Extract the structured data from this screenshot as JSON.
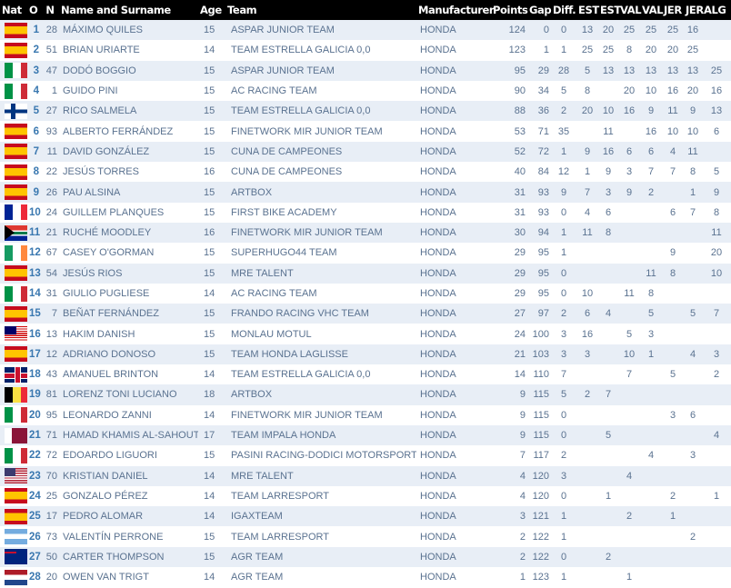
{
  "headers": {
    "nat": "Nat",
    "pos": "O",
    "num": "N",
    "name": "Name and Surname",
    "age": "Age",
    "team": "Team",
    "manufacturer": "Manufacturer",
    "points": "Points",
    "gap": "Gap",
    "diff": "Diff.",
    "races": [
      "EST",
      "EST",
      "VAL",
      "VAL",
      "JER",
      "JER",
      "ALG"
    ]
  },
  "colors": {
    "header_bg": "#000000",
    "row_alt": "#e8eef6",
    "text": "#5a7290",
    "position": "#3a78b0"
  },
  "rows": [
    {
      "flag": "es",
      "pos": "1",
      "num": "28",
      "name": "MÁXIMO QUILES",
      "age": "15",
      "team": "ASPAR JUNIOR TEAM",
      "manufacturer": "HONDA",
      "points": "124",
      "gap": "0",
      "diff": "0",
      "races": [
        "13",
        "20",
        "25",
        "25",
        "25",
        "16",
        ""
      ]
    },
    {
      "flag": "es",
      "pos": "2",
      "num": "51",
      "name": "BRIAN URIARTE",
      "age": "14",
      "team": "TEAM ESTRELLA GALICIA 0,0",
      "manufacturer": "HONDA",
      "points": "123",
      "gap": "1",
      "diff": "1",
      "races": [
        "25",
        "25",
        "8",
        "20",
        "20",
        "25",
        ""
      ]
    },
    {
      "flag": "it",
      "pos": "3",
      "num": "47",
      "name": "DODÓ BOGGIO",
      "age": "15",
      "team": "ASPAR JUNIOR TEAM",
      "manufacturer": "HONDA",
      "points": "95",
      "gap": "29",
      "diff": "28",
      "races": [
        "5",
        "13",
        "13",
        "13",
        "13",
        "13",
        "25"
      ]
    },
    {
      "flag": "it",
      "pos": "4",
      "num": "1",
      "name": "GUIDO PINI",
      "age": "15",
      "team": "AC RACING TEAM",
      "manufacturer": "HONDA",
      "points": "90",
      "gap": "34",
      "diff": "5",
      "races": [
        "8",
        "",
        "20",
        "10",
        "16",
        "20",
        "16"
      ]
    },
    {
      "flag": "fi",
      "pos": "5",
      "num": "27",
      "name": "RICO SALMELA",
      "age": "15",
      "team": "TEAM ESTRELLA GALICIA 0,0",
      "manufacturer": "HONDA",
      "points": "88",
      "gap": "36",
      "diff": "2",
      "races": [
        "20",
        "10",
        "16",
        "9",
        "11",
        "9",
        "13"
      ]
    },
    {
      "flag": "es",
      "pos": "6",
      "num": "93",
      "name": "ALBERTO FERRÁNDEZ",
      "age": "15",
      "team": "FINETWORK MIR JUNIOR TEAM",
      "manufacturer": "HONDA",
      "points": "53",
      "gap": "71",
      "diff": "35",
      "races": [
        "",
        "11",
        "",
        "16",
        "10",
        "10",
        "6"
      ]
    },
    {
      "flag": "es",
      "pos": "7",
      "num": "11",
      "name": "DAVID GONZÁLEZ",
      "age": "15",
      "team": "CUNA DE CAMPEONES",
      "manufacturer": "HONDA",
      "points": "52",
      "gap": "72",
      "diff": "1",
      "races": [
        "9",
        "16",
        "6",
        "6",
        "4",
        "11",
        ""
      ]
    },
    {
      "flag": "es",
      "pos": "8",
      "num": "22",
      "name": "JESÚS TORRES",
      "age": "16",
      "team": "CUNA DE CAMPEONES",
      "manufacturer": "HONDA",
      "points": "40",
      "gap": "84",
      "diff": "12",
      "races": [
        "1",
        "9",
        "3",
        "7",
        "7",
        "8",
        "5"
      ]
    },
    {
      "flag": "es",
      "pos": "9",
      "num": "26",
      "name": "PAU ALSINA",
      "age": "15",
      "team": "ARTBOX",
      "manufacturer": "HONDA",
      "points": "31",
      "gap": "93",
      "diff": "9",
      "races": [
        "7",
        "3",
        "9",
        "2",
        "",
        "1",
        "9"
      ]
    },
    {
      "flag": "fr",
      "pos": "10",
      "num": "24",
      "name": "GUILLEM PLANQUES",
      "age": "15",
      "team": "FIRST BIKE ACADEMY",
      "manufacturer": "HONDA",
      "points": "31",
      "gap": "93",
      "diff": "0",
      "races": [
        "4",
        "6",
        "",
        "",
        "6",
        "7",
        "8"
      ]
    },
    {
      "flag": "za",
      "pos": "11",
      "num": "21",
      "name": "RUCHÉ MOODLEY",
      "age": "16",
      "team": "FINETWORK MIR JUNIOR TEAM",
      "manufacturer": "HONDA",
      "points": "30",
      "gap": "94",
      "diff": "1",
      "races": [
        "11",
        "8",
        "",
        "",
        "",
        "",
        "11"
      ]
    },
    {
      "flag": "ie",
      "pos": "12",
      "num": "67",
      "name": "CASEY O'GORMAN",
      "age": "15",
      "team": "SUPERHUGO44 TEAM",
      "manufacturer": "HONDA",
      "points": "29",
      "gap": "95",
      "diff": "1",
      "races": [
        "",
        "",
        "",
        "",
        "9",
        "",
        "20"
      ]
    },
    {
      "flag": "es",
      "pos": "13",
      "num": "54",
      "name": "JESÚS RIOS",
      "age": "15",
      "team": "MRE TALENT",
      "manufacturer": "HONDA",
      "points": "29",
      "gap": "95",
      "diff": "0",
      "races": [
        "",
        "",
        "",
        "11",
        "8",
        "",
        "10"
      ]
    },
    {
      "flag": "it",
      "pos": "14",
      "num": "31",
      "name": "GIULIO PUGLIESE",
      "age": "14",
      "team": "AC RACING TEAM",
      "manufacturer": "HONDA",
      "points": "29",
      "gap": "95",
      "diff": "0",
      "races": [
        "10",
        "",
        "11",
        "8",
        "",
        "",
        ""
      ]
    },
    {
      "flag": "es",
      "pos": "15",
      "num": "7",
      "name": "BEÑAT FERNÁNDEZ",
      "age": "15",
      "team": "FRANDO RACING VHC TEAM",
      "manufacturer": "HONDA",
      "points": "27",
      "gap": "97",
      "diff": "2",
      "races": [
        "6",
        "4",
        "",
        "5",
        "",
        "5",
        "7"
      ]
    },
    {
      "flag": "my",
      "pos": "16",
      "num": "13",
      "name": "HAKIM DANISH",
      "age": "15",
      "team": "MONLAU MOTUL",
      "manufacturer": "HONDA",
      "points": "24",
      "gap": "100",
      "diff": "3",
      "races": [
        "16",
        "",
        "5",
        "3",
        "",
        "",
        ""
      ]
    },
    {
      "flag": "es",
      "pos": "17",
      "num": "12",
      "name": "ADRIANO DONOSO",
      "age": "15",
      "team": "TEAM HONDA LAGLISSE",
      "manufacturer": "HONDA",
      "points": "21",
      "gap": "103",
      "diff": "3",
      "races": [
        "3",
        "",
        "10",
        "1",
        "",
        "4",
        "3"
      ]
    },
    {
      "flag": "gb",
      "pos": "18",
      "num": "43",
      "name": "AMANUEL BRINTON",
      "age": "14",
      "team": "TEAM ESTRELLA GALICIA 0,0",
      "manufacturer": "HONDA",
      "points": "14",
      "gap": "110",
      "diff": "7",
      "races": [
        "",
        "",
        "7",
        "",
        "5",
        "",
        "2"
      ]
    },
    {
      "flag": "be",
      "pos": "19",
      "num": "81",
      "name": "LORENZ TONI LUCIANO",
      "age": "18",
      "team": "ARTBOX",
      "manufacturer": "HONDA",
      "points": "9",
      "gap": "115",
      "diff": "5",
      "races": [
        "2",
        "7",
        "",
        "",
        "",
        "",
        ""
      ]
    },
    {
      "flag": "it",
      "pos": "20",
      "num": "95",
      "name": "LEONARDO ZANNI",
      "age": "14",
      "team": "FINETWORK MIR JUNIOR TEAM",
      "manufacturer": "HONDA",
      "points": "9",
      "gap": "115",
      "diff": "0",
      "races": [
        "",
        "",
        "",
        "",
        "3",
        "6",
        ""
      ]
    },
    {
      "flag": "qa",
      "pos": "21",
      "num": "71",
      "name": "HAMAD KHAMIS AL-SAHOUTI",
      "age": "17",
      "team": "TEAM IMPALA HONDA",
      "manufacturer": "HONDA",
      "points": "9",
      "gap": "115",
      "diff": "0",
      "races": [
        "",
        "5",
        "",
        "",
        "",
        "",
        "4"
      ]
    },
    {
      "flag": "it",
      "pos": "22",
      "num": "72",
      "name": "EDOARDO LIGUORI",
      "age": "15",
      "team": "PASINI RACING-DODICI MOTORSPORT",
      "manufacturer": "HONDA",
      "points": "7",
      "gap": "117",
      "diff": "2",
      "races": [
        "",
        "",
        "",
        "4",
        "",
        "3",
        ""
      ]
    },
    {
      "flag": "us",
      "pos": "23",
      "num": "70",
      "name": "KRISTIAN DANIEL",
      "age": "14",
      "team": "MRE TALENT",
      "manufacturer": "HONDA",
      "points": "4",
      "gap": "120",
      "diff": "3",
      "races": [
        "",
        "",
        "4",
        "",
        "",
        "",
        ""
      ]
    },
    {
      "flag": "es",
      "pos": "24",
      "num": "25",
      "name": "GONZALO PÉREZ",
      "age": "14",
      "team": "TEAM LARRESPORT",
      "manufacturer": "HONDA",
      "points": "4",
      "gap": "120",
      "diff": "0",
      "races": [
        "",
        "1",
        "",
        "",
        "2",
        "",
        "1"
      ]
    },
    {
      "flag": "es",
      "pos": "25",
      "num": "17",
      "name": "PEDRO ALOMAR",
      "age": "14",
      "team": "IGAXTEAM",
      "manufacturer": "HONDA",
      "points": "3",
      "gap": "121",
      "diff": "1",
      "races": [
        "",
        "",
        "2",
        "",
        "1",
        "",
        ""
      ]
    },
    {
      "flag": "ar",
      "pos": "26",
      "num": "73",
      "name": "VALENTÍN PERRONE",
      "age": "15",
      "team": "TEAM LARRESPORT",
      "manufacturer": "HONDA",
      "points": "2",
      "gap": "122",
      "diff": "1",
      "races": [
        "",
        "",
        "",
        "",
        "",
        "2",
        ""
      ]
    },
    {
      "flag": "au",
      "pos": "27",
      "num": "50",
      "name": "CARTER THOMPSON",
      "age": "15",
      "team": "AGR TEAM",
      "manufacturer": "HONDA",
      "points": "2",
      "gap": "122",
      "diff": "0",
      "races": [
        "",
        "2",
        "",
        "",
        "",
        "",
        ""
      ]
    },
    {
      "flag": "nl",
      "pos": "28",
      "num": "20",
      "name": "OWEN VAN TRIGT",
      "age": "14",
      "team": "AGR TEAM",
      "manufacturer": "HONDA",
      "points": "1",
      "gap": "123",
      "diff": "1",
      "races": [
        "",
        "",
        "1",
        "",
        "",
        "",
        ""
      ]
    }
  ]
}
